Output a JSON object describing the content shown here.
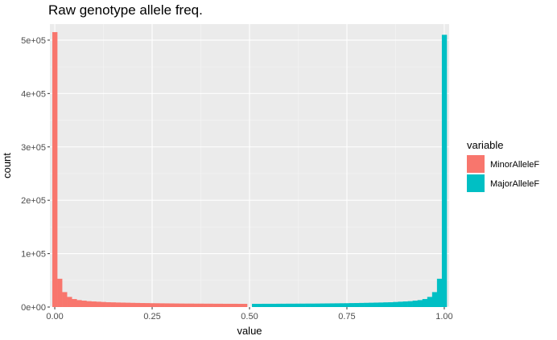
{
  "chart_data": {
    "type": "bar",
    "subtype": "histogram",
    "title": "Raw genotype allele freq.",
    "xlabel": "value",
    "ylabel": "count",
    "xlim": [
      -0.0125,
      1.0125
    ],
    "ylim": [
      0,
      530000
    ],
    "x_ticks": [
      0.0,
      0.25,
      0.5,
      0.75,
      1.0
    ],
    "x_tick_labels": [
      "0.00",
      "0.25",
      "0.50",
      "0.75",
      "1.00"
    ],
    "y_ticks": [
      0,
      100000,
      200000,
      300000,
      400000,
      500000
    ],
    "y_tick_labels": [
      "0e+00",
      "1e+05",
      "2e+05",
      "3e+05",
      "4e+05",
      "5e+05"
    ],
    "grid": true,
    "legend": {
      "title": "variable",
      "position": "right"
    },
    "bin_width": 0.0125,
    "series": [
      {
        "name": "MinorAlleleF",
        "color": "#F8766D",
        "bin_centers": [
          0.0,
          0.0125,
          0.025,
          0.0375,
          0.05,
          0.0625,
          0.075,
          0.0875,
          0.1,
          0.1125,
          0.125,
          0.1375,
          0.15,
          0.1625,
          0.175,
          0.1875,
          0.2,
          0.2125,
          0.225,
          0.2375,
          0.25,
          0.2625,
          0.275,
          0.2875,
          0.3,
          0.3125,
          0.325,
          0.3375,
          0.35,
          0.3625,
          0.375,
          0.3875,
          0.4,
          0.4125,
          0.425,
          0.4375,
          0.45,
          0.4625,
          0.475,
          0.4875
        ],
        "values": [
          515000,
          53000,
          28000,
          19000,
          15000,
          13000,
          12000,
          11000,
          10500,
          10000,
          9500,
          9000,
          8800,
          8500,
          8300,
          8100,
          7900,
          7700,
          7500,
          7400,
          7200,
          7100,
          7000,
          6900,
          6800,
          6700,
          6600,
          6500,
          6500,
          6400,
          6400,
          6300,
          6300,
          6200,
          6200,
          6100,
          6100,
          6100,
          6000,
          6000
        ]
      },
      {
        "name": "MajorAlleleF",
        "color": "#00BFC4",
        "bin_centers": [
          0.5125,
          0.525,
          0.5375,
          0.55,
          0.5625,
          0.575,
          0.5875,
          0.6,
          0.6125,
          0.625,
          0.6375,
          0.65,
          0.6625,
          0.675,
          0.6875,
          0.7,
          0.7125,
          0.725,
          0.7375,
          0.75,
          0.7625,
          0.775,
          0.7875,
          0.8,
          0.8125,
          0.825,
          0.8375,
          0.85,
          0.8625,
          0.875,
          0.8875,
          0.9,
          0.9125,
          0.925,
          0.9375,
          0.95,
          0.9625,
          0.975,
          0.9875,
          1.0
        ],
        "values": [
          6000,
          6000,
          6100,
          6100,
          6100,
          6200,
          6200,
          6300,
          6300,
          6400,
          6400,
          6500,
          6500,
          6600,
          6700,
          6800,
          6900,
          7000,
          7100,
          7200,
          7400,
          7500,
          7700,
          7900,
          8100,
          8300,
          8500,
          8800,
          9000,
          9500,
          10000,
          10500,
          11000,
          12000,
          13000,
          15000,
          19000,
          28000,
          53000,
          510000
        ]
      }
    ]
  }
}
